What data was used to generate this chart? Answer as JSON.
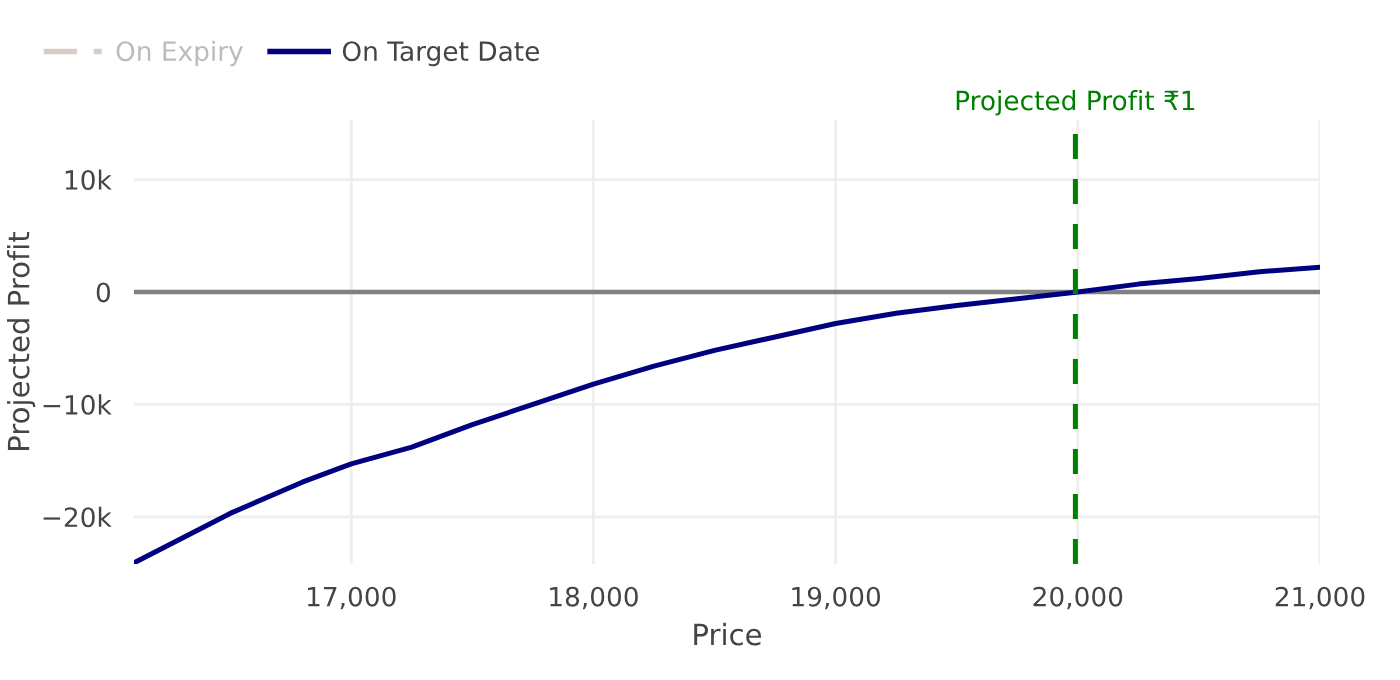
{
  "chart_data": {
    "type": "line",
    "xlabel": "Price",
    "ylabel": "Projected Profit",
    "x": [
      16103,
      16500,
      16800,
      17000,
      17250,
      17500,
      17750,
      18000,
      18250,
      18500,
      18750,
      19000,
      19250,
      19500,
      19750,
      20000,
      20250,
      20500,
      20750,
      21000
    ],
    "series": [
      {
        "name": "On Expiry",
        "color": "#bcaaa4",
        "line_style": "dashdot",
        "values": [
          null,
          null,
          null,
          null,
          null,
          null,
          null,
          null,
          null,
          null,
          null,
          null,
          null,
          null,
          null,
          null,
          null,
          null,
          null,
          null
        ]
      },
      {
        "name": "On Target Date",
        "color": "#000080",
        "line_style": "solid",
        "values": [
          -24100,
          -19700,
          -16900,
          -15300,
          -13800,
          -11800,
          -10000,
          -8200,
          -6600,
          -5200,
          -4000,
          -2800,
          -1900,
          -1200,
          -600,
          0,
          700,
          1200,
          1800,
          2200
        ]
      }
    ],
    "xlim": [
      16103,
      21000
    ],
    "xticks": [
      {
        "value": 17000,
        "label": "17,000"
      },
      {
        "value": 18000,
        "label": "18,000"
      },
      {
        "value": 19000,
        "label": "19,000"
      },
      {
        "value": 20000,
        "label": "20,000"
      },
      {
        "value": 21000,
        "label": "21,000"
      }
    ],
    "ylim": [
      -24200,
      15300
    ],
    "yticks": [
      {
        "value": -20000,
        "label": "−20k"
      },
      {
        "value": -10000,
        "label": "−10k"
      },
      0,
      {
        "value": 10000,
        "label": "10k"
      }
    ],
    "ref_lines": [
      {
        "axis": "y",
        "value": 0,
        "label": null,
        "color": "#808080",
        "line_style": "solid"
      },
      {
        "axis": "x",
        "value": 19990,
        "label": "Projected Profit ₹1",
        "color": "#008000",
        "line_style": "dashed"
      }
    ],
    "grid": true,
    "legend": "top left",
    "marker": "none"
  }
}
